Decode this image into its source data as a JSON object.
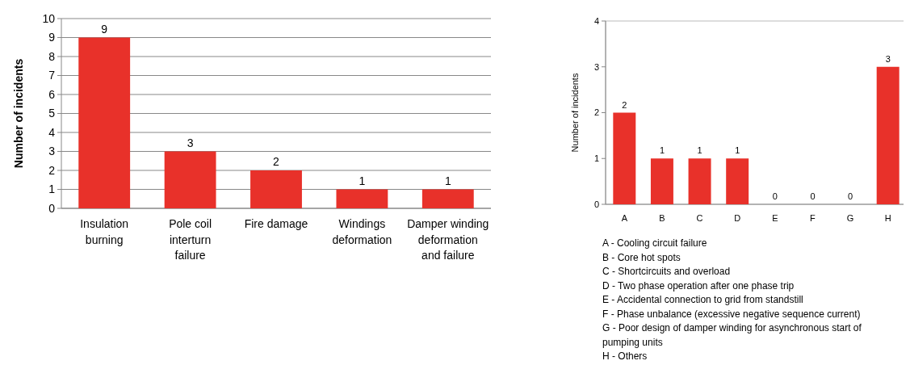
{
  "chart_data": [
    {
      "type": "bar",
      "ylabel": "Number of incidents",
      "categories": [
        "Insulation burning",
        "Pole coil interturn failure",
        "Fire damage",
        "Windings deformation",
        "Damper winding deformation and failure"
      ],
      "values": [
        9,
        3,
        2,
        1,
        1
      ],
      "color": "#e8312a",
      "ylim": [
        0,
        10
      ],
      "yticks": [
        0,
        1,
        2,
        3,
        4,
        5,
        6,
        7,
        8,
        9,
        10
      ],
      "grid": "y",
      "data_labels": true
    },
    {
      "type": "bar",
      "ylabel": "Number of incidents",
      "categories": [
        "A",
        "B",
        "C",
        "D",
        "E",
        "F",
        "G",
        "H"
      ],
      "values": [
        2,
        1,
        1,
        1,
        0,
        0,
        0,
        3
      ],
      "color": "#e8312a",
      "ylim": [
        0,
        4
      ],
      "yticks": [
        0,
        1,
        2,
        3,
        4
      ],
      "data_labels": true,
      "annotations": [
        "A - Cooling circuit failure",
        "B - Core hot spots",
        "C - Shortcircuits and overload",
        "D - Two phase operation after one phase trip",
        "E - Accidental connection to grid from standstill",
        "F - Phase unbalance (excessive negative sequence current)",
        "G - Poor design of damper winding for asynchronous start of pumping units",
        "H - Others"
      ]
    }
  ]
}
